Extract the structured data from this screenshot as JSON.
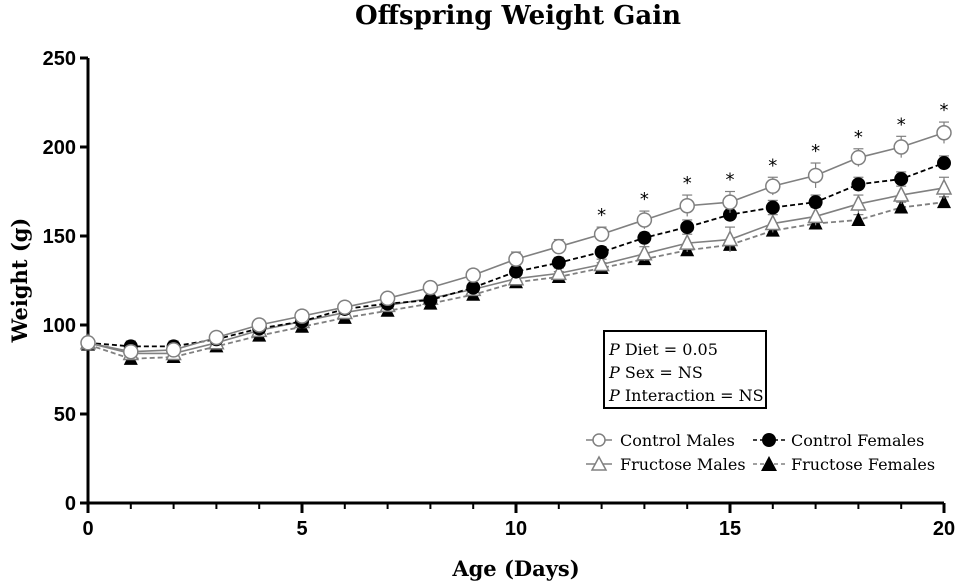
{
  "chart_data": {
    "type": "line",
    "title": "Offspring Weight Gain",
    "xlabel": "Age (Days)",
    "ylabel": "Weight (g)",
    "xlim": [
      0,
      20
    ],
    "ylim": [
      0,
      250
    ],
    "x_ticks": [
      0,
      5,
      10,
      15,
      20
    ],
    "y_ticks": [
      0,
      50,
      100,
      150,
      200,
      250
    ],
    "grid": false,
    "legend_position": "bottom-right",
    "x": [
      0,
      1,
      2,
      3,
      4,
      5,
      6,
      7,
      8,
      9,
      10,
      11,
      12,
      13,
      14,
      15,
      16,
      17,
      18,
      19,
      20
    ],
    "series": [
      {
        "name": "Control Males",
        "marker": "open-circle",
        "line": "solid",
        "color": "#808080",
        "values": [
          90,
          85,
          86,
          93,
          100,
          105,
          110,
          115,
          121,
          128,
          137,
          144,
          151,
          159,
          167,
          169,
          178,
          184,
          194,
          200,
          208
        ],
        "error": [
          1.5,
          3,
          2.5,
          2,
          2,
          2,
          2,
          2,
          2,
          3,
          4,
          4,
          4,
          5,
          6,
          6,
          5,
          7,
          5,
          6,
          6
        ]
      },
      {
        "name": "Control Females",
        "marker": "filled-circle",
        "line": "dashed",
        "color": "#000000",
        "values": [
          90,
          88,
          88,
          92,
          98,
          102,
          109,
          112,
          114,
          121,
          130,
          135,
          141,
          149,
          155,
          162,
          166,
          169,
          179,
          182,
          191
        ],
        "error": [
          1.5,
          3,
          3,
          2,
          2,
          2,
          2,
          2,
          2,
          2,
          3,
          3,
          3,
          3,
          4,
          4,
          4,
          4,
          4,
          4,
          4
        ]
      },
      {
        "name": "Fructose Males",
        "marker": "open-triangle",
        "line": "solid",
        "color": "#808080",
        "values": [
          90,
          84,
          84,
          90,
          97,
          102,
          107,
          111,
          115,
          120,
          126,
          129,
          134,
          140,
          146,
          148,
          157,
          161,
          168,
          173,
          177
        ],
        "error": [
          1.5,
          2,
          2,
          2,
          2,
          2,
          2,
          2,
          2,
          2,
          3,
          3,
          3,
          4,
          5,
          7,
          5,
          5,
          5,
          5,
          6
        ]
      },
      {
        "name": "Fructose Females",
        "marker": "filled-triangle",
        "line": "dashed",
        "color": "#808080",
        "values": [
          89,
          81,
          82,
          88,
          94,
          99,
          104,
          108,
          112,
          117,
          124,
          127,
          132,
          137,
          142,
          145,
          153,
          157,
          159,
          166,
          169
        ],
        "error": [
          1.5,
          2,
          2,
          2,
          2,
          2,
          2,
          2,
          2,
          2,
          2,
          3,
          3,
          3,
          3,
          3,
          3,
          3,
          3,
          3,
          3
        ]
      }
    ],
    "significance": {
      "symbol": "*",
      "days": [
        12,
        13,
        14,
        15,
        16,
        17,
        18,
        19,
        20
      ]
    },
    "stats_box": {
      "lines": [
        {
          "p": "P",
          "text": " Diet = 0.05"
        },
        {
          "p": "P",
          "text": " Sex = NS"
        },
        {
          "p": "P",
          "text": " Interaction = NS"
        }
      ]
    }
  }
}
